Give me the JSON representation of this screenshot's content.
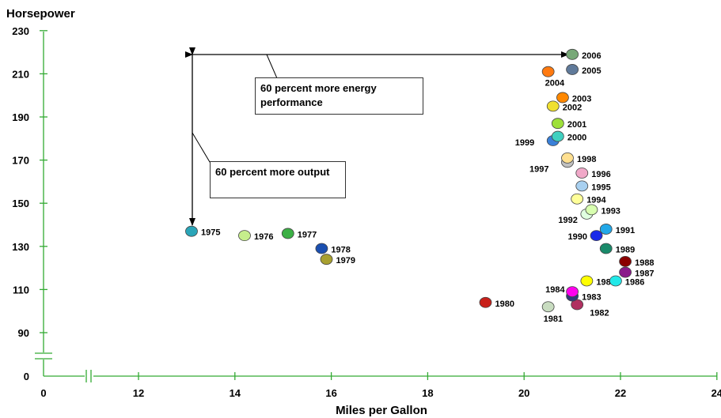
{
  "chart_data": {
    "type": "scatter",
    "title": "",
    "xlabel": "Miles per Gallon",
    "ylabel": "Horsepower",
    "x_ticks": [
      "0",
      "12",
      "14",
      "16",
      "18",
      "20",
      "22",
      "24"
    ],
    "y_ticks": [
      "0",
      "90",
      "110",
      "130",
      "150",
      "170",
      "190",
      "210",
      "230"
    ],
    "xlim": [
      11,
      24
    ],
    "ylim": [
      0,
      230
    ],
    "axis_breaks": {
      "x": "between 0 and 12",
      "y": "between 0 and 90"
    },
    "grid": false,
    "legend": "none",
    "points": [
      {
        "year": "1975",
        "mpg": 13.1,
        "hp": 137,
        "color": "#2aa5b8"
      },
      {
        "year": "1976",
        "mpg": 14.2,
        "hp": 135,
        "color": "#c6ee8c"
      },
      {
        "year": "1977",
        "mpg": 15.1,
        "hp": 136,
        "color": "#3cb045"
      },
      {
        "year": "1978",
        "mpg": 15.8,
        "hp": 129,
        "color": "#1a4fb0"
      },
      {
        "year": "1979",
        "mpg": 15.9,
        "hp": 124,
        "color": "#a8a030"
      },
      {
        "year": "1980",
        "mpg": 19.2,
        "hp": 104,
        "color": "#c8201a"
      },
      {
        "year": "1981",
        "mpg": 20.5,
        "hp": 102,
        "color": "#c8dcc0"
      },
      {
        "year": "1982",
        "mpg": 21.1,
        "hp": 103,
        "color": "#b03060"
      },
      {
        "year": "1983",
        "mpg": 21.0,
        "hp": 107,
        "color": "#303a7a"
      },
      {
        "year": "1984",
        "mpg": 21.0,
        "hp": 109,
        "color": "#ff00ee"
      },
      {
        "year": "1985",
        "mpg": 21.3,
        "hp": 114,
        "color": "#ffff00"
      },
      {
        "year": "1986",
        "mpg": 21.9,
        "hp": 114,
        "color": "#22e8e8"
      },
      {
        "year": "1987",
        "mpg": 22.1,
        "hp": 118,
        "color": "#8a1a8a"
      },
      {
        "year": "1988",
        "mpg": 22.1,
        "hp": 123,
        "color": "#8a0000"
      },
      {
        "year": "1989",
        "mpg": 21.7,
        "hp": 129,
        "color": "#1a8a6a"
      },
      {
        "year": "1990",
        "mpg": 21.5,
        "hp": 135,
        "color": "#1a2ae8"
      },
      {
        "year": "1991",
        "mpg": 21.7,
        "hp": 138,
        "color": "#22a8e8"
      },
      {
        "year": "1992",
        "mpg": 21.3,
        "hp": 145,
        "color": "#e0ffe0"
      },
      {
        "year": "1993",
        "mpg": 21.4,
        "hp": 147,
        "color": "#d8ffb0"
      },
      {
        "year": "1994",
        "mpg": 21.1,
        "hp": 152,
        "color": "#ffff99"
      },
      {
        "year": "1995",
        "mpg": 21.2,
        "hp": 158,
        "color": "#a8d0f0"
      },
      {
        "year": "1996",
        "mpg": 21.2,
        "hp": 164,
        "color": "#f0a8c8"
      },
      {
        "year": "1997",
        "mpg": 20.9,
        "hp": 169,
        "color": "#c0c0c0"
      },
      {
        "year": "1998",
        "mpg": 20.9,
        "hp": 171,
        "color": "#ffe090"
      },
      {
        "year": "1999",
        "mpg": 20.6,
        "hp": 179,
        "color": "#3a80d8"
      },
      {
        "year": "2000",
        "mpg": 20.7,
        "hp": 181,
        "color": "#40d0c0"
      },
      {
        "year": "2001",
        "mpg": 20.7,
        "hp": 187,
        "color": "#9ee03a"
      },
      {
        "year": "2002",
        "mpg": 20.6,
        "hp": 195,
        "color": "#f0e030"
      },
      {
        "year": "2003",
        "mpg": 20.8,
        "hp": 199,
        "color": "#ff8800"
      },
      {
        "year": "2004",
        "mpg": 20.5,
        "hp": 211,
        "color": "#ff7a10"
      },
      {
        "year": "2005",
        "mpg": 21.0,
        "hp": 212,
        "color": "#607a9a"
      },
      {
        "year": "2006",
        "mpg": 21.0,
        "hp": 219,
        "color": "#78a878"
      }
    ],
    "annotations": [
      {
        "text": "60 percent more energy performance"
      },
      {
        "text": "60 percent more output"
      }
    ]
  }
}
